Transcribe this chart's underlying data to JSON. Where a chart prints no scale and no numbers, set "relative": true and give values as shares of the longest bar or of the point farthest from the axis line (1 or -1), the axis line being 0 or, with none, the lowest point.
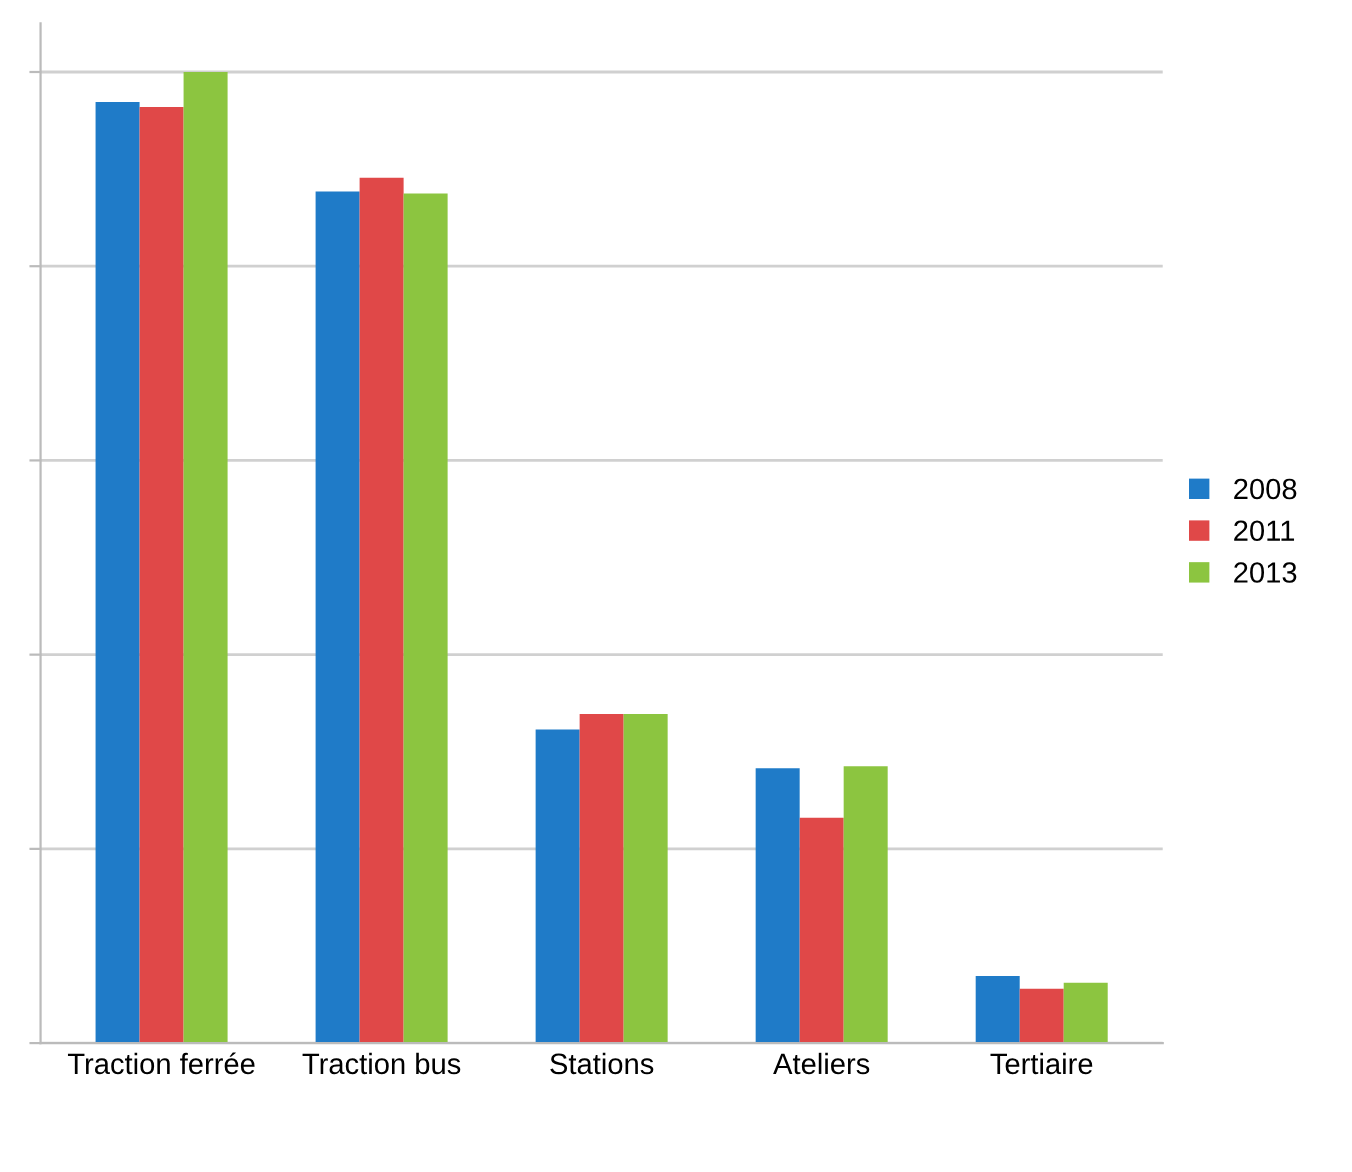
{
  "chart_data": {
    "type": "bar",
    "relative": true,
    "grid": "y",
    "legend": "right",
    "categories": [
      "Traction ferrée",
      "Traction bus",
      "Stations",
      "Ateliers",
      "Tertiaire"
    ],
    "series": [
      {
        "name": "2008",
        "color": "#1f7bc8",
        "values": [
          0.969,
          0.877,
          0.323,
          0.283,
          0.069
        ]
      },
      {
        "name": "2011",
        "color": "#e04848",
        "values": [
          0.964,
          0.891,
          0.339,
          0.232,
          0.056
        ]
      },
      {
        "name": "2013",
        "color": "#8cc540",
        "values": [
          1,
          0.875,
          0.339,
          0.285,
          0.062
        ]
      }
    ]
  }
}
